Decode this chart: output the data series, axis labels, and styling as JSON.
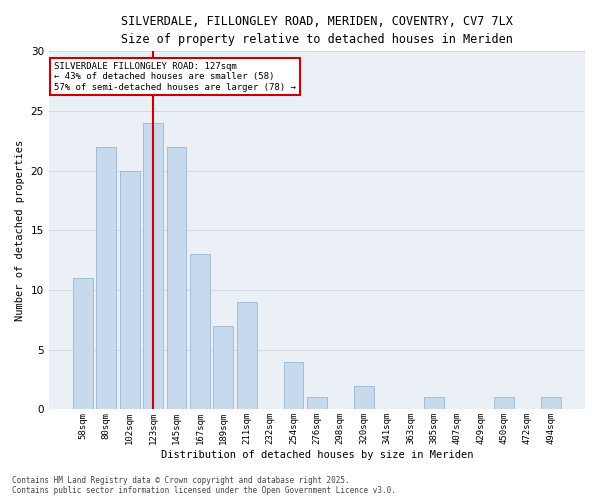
{
  "title1": "SILVERDALE, FILLONGLEY ROAD, MERIDEN, COVENTRY, CV7 7LX",
  "title2": "Size of property relative to detached houses in Meriden",
  "xlabel": "Distribution of detached houses by size in Meriden",
  "ylabel": "Number of detached properties",
  "categories": [
    "58sqm",
    "80sqm",
    "102sqm",
    "123sqm",
    "145sqm",
    "167sqm",
    "189sqm",
    "211sqm",
    "232sqm",
    "254sqm",
    "276sqm",
    "298sqm",
    "320sqm",
    "341sqm",
    "363sqm",
    "385sqm",
    "407sqm",
    "429sqm",
    "450sqm",
    "472sqm",
    "494sqm"
  ],
  "values": [
    11,
    22,
    20,
    24,
    22,
    13,
    7,
    9,
    0,
    4,
    1,
    0,
    2,
    0,
    0,
    1,
    0,
    0,
    1,
    0,
    1
  ],
  "bar_color": "#c6d9ed",
  "bar_edgecolor": "#9ab8d4",
  "vline_x_index": 3,
  "vline_color": "#cc0000",
  "annotation_line1": "SILVERDALE FILLONGLEY ROAD: 127sqm",
  "annotation_line2": "← 43% of detached houses are smaller (58)",
  "annotation_line3": "57% of semi-detached houses are larger (78) →",
  "annotation_box_color": "#ffffff",
  "annotation_box_edgecolor": "#cc0000",
  "ylim": [
    0,
    30
  ],
  "yticks": [
    0,
    5,
    10,
    15,
    20,
    25,
    30
  ],
  "grid_color": "#d0d8e0",
  "bg_color": "#eaf0f6",
  "footnote": "Contains HM Land Registry data © Crown copyright and database right 2025.\nContains public sector information licensed under the Open Government Licence v3.0."
}
